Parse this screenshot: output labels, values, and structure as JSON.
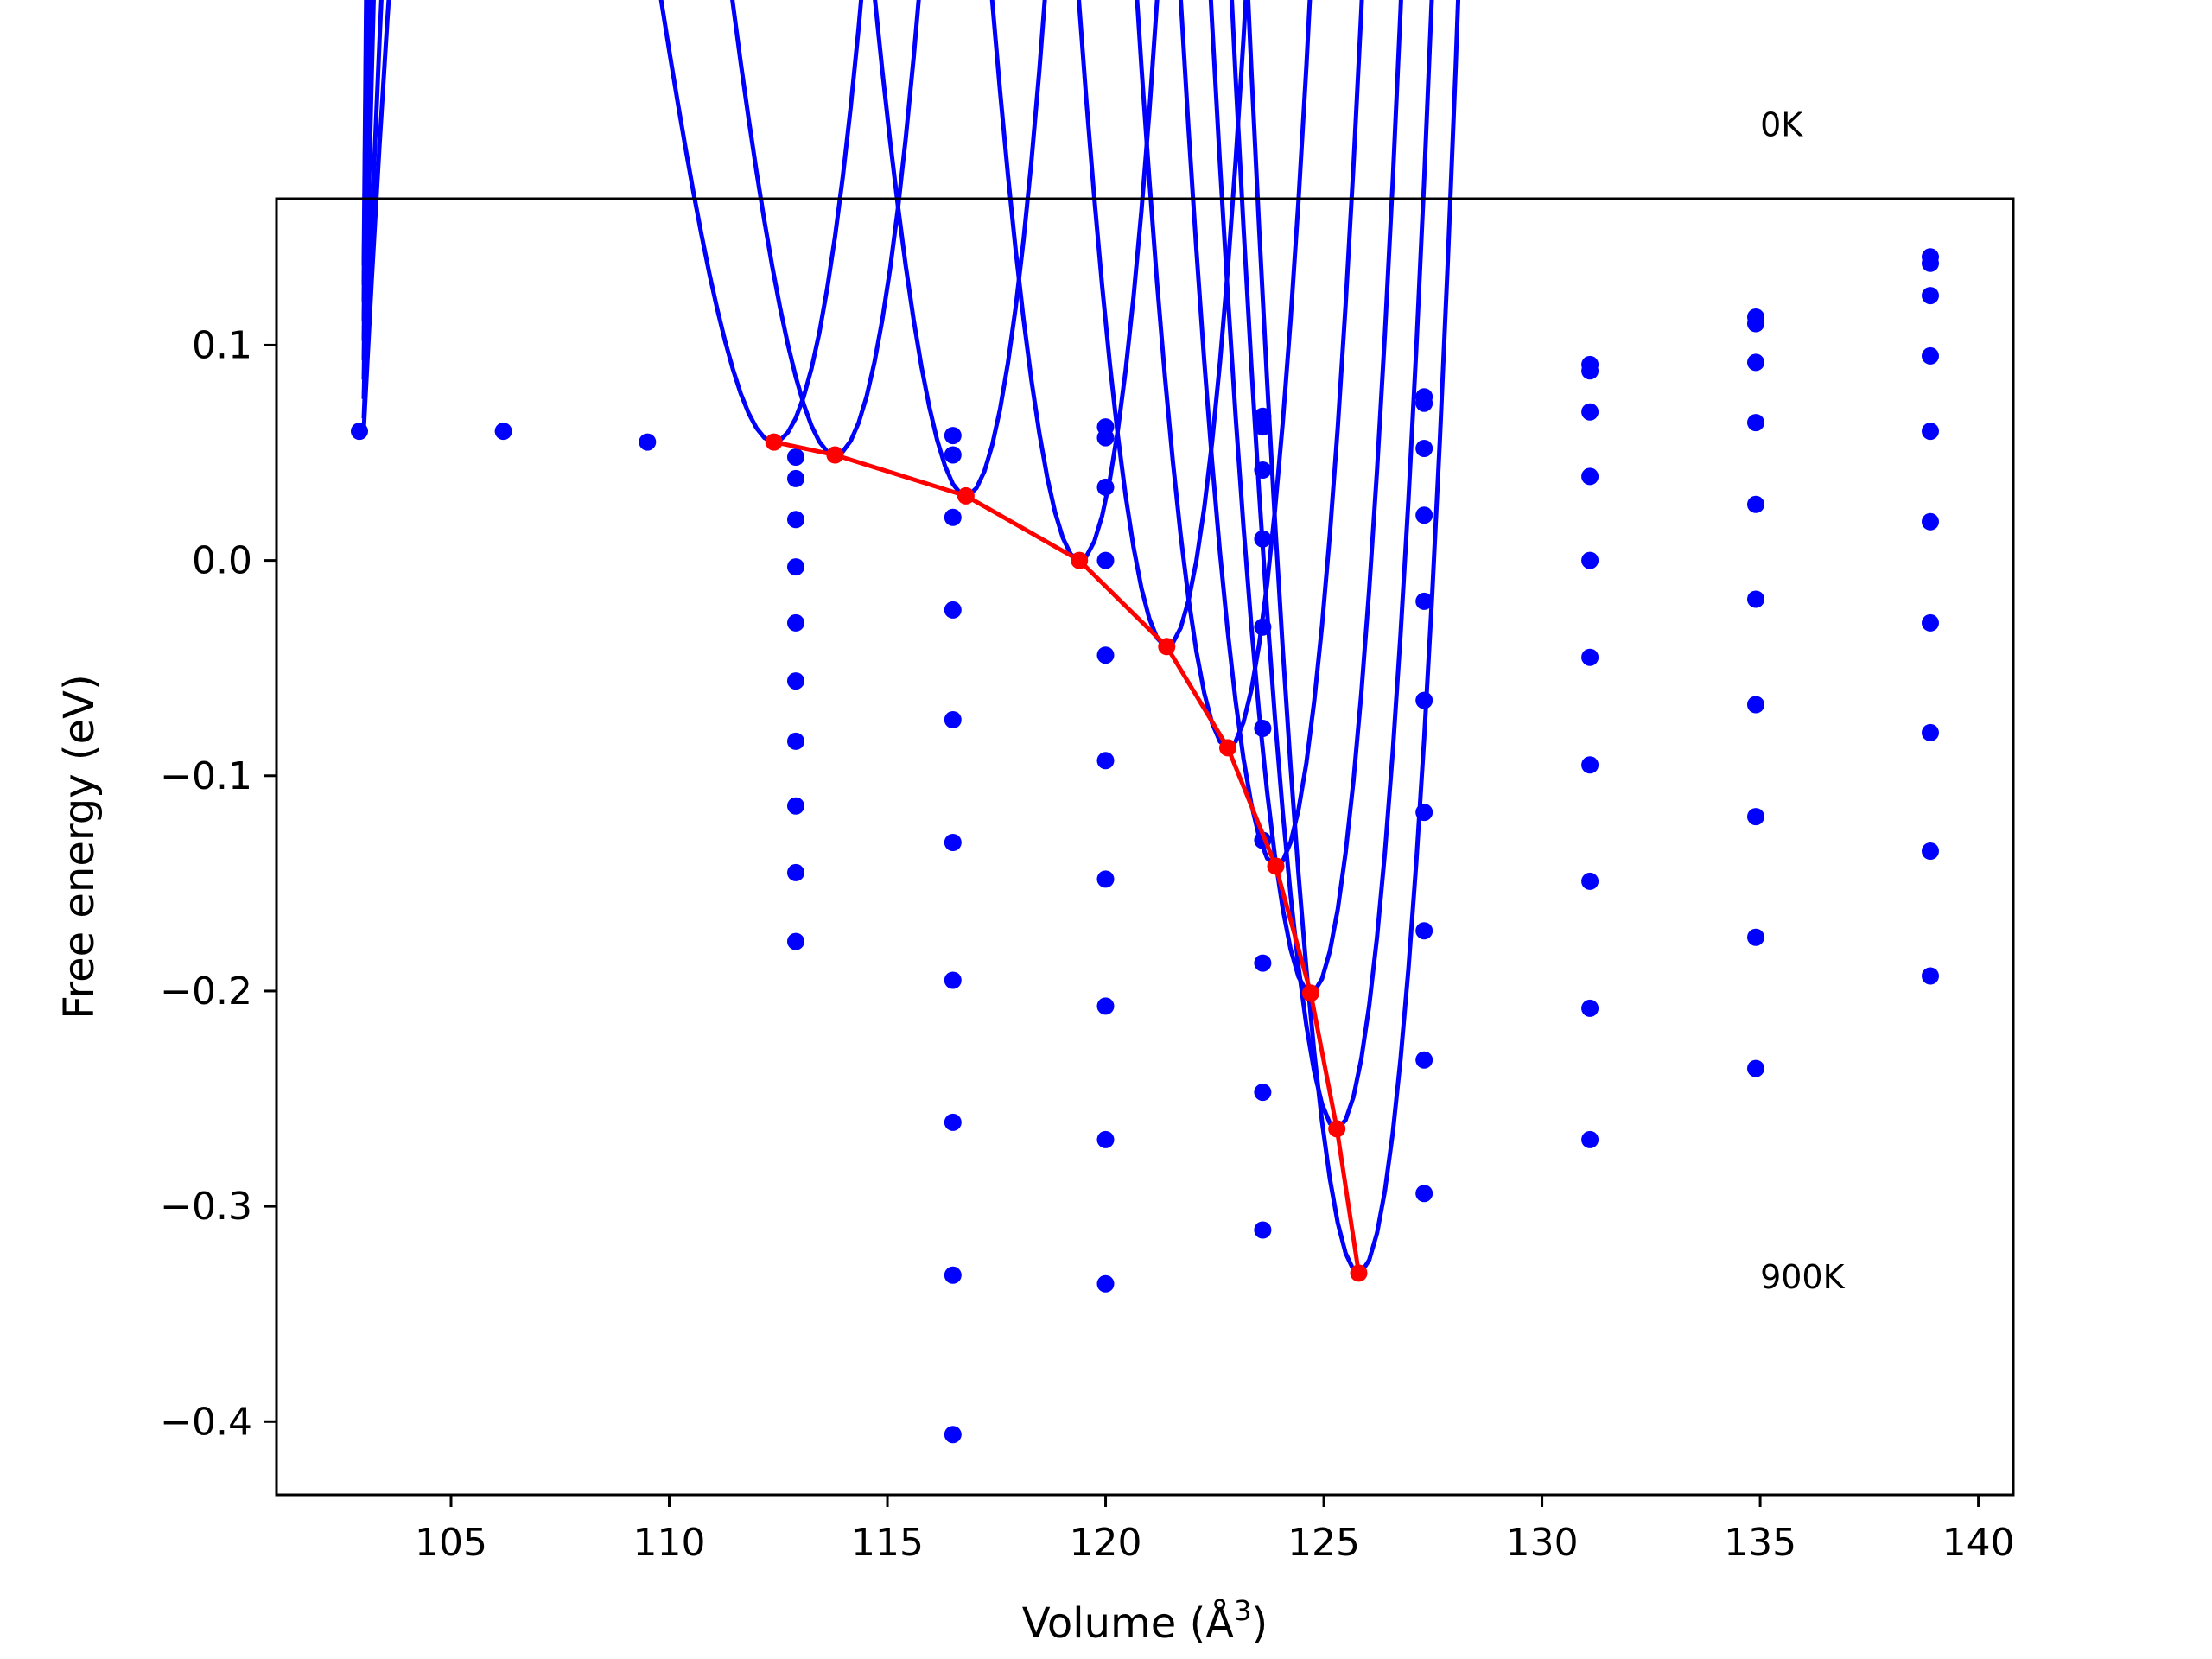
{
  "chart_data": {
    "type": "scatter",
    "title": "",
    "xlabel": "Volume (Å",
    "xlabel_exponent": "3",
    "xlabel_close": ")",
    "ylabel": "Free energy (eV)",
    "xlim": [
      101,
      140.8
    ],
    "ylim": [
      -0.434,
      0.168
    ],
    "xticks": [
      105,
      110,
      115,
      120,
      125,
      130,
      135,
      140
    ],
    "xtick_labels": [
      "105",
      "110",
      "115",
      "120",
      "125",
      "130",
      "135",
      "140"
    ],
    "yticks": [
      0.1,
      0.0,
      -0.1,
      -0.2,
      -0.3,
      -0.4
    ],
    "ytick_labels": [
      "0.1",
      "0.0",
      "−0.1",
      "−0.2",
      "−0.3",
      "−0.4"
    ],
    "grid": false,
    "annotations": [
      {
        "text": "0K",
        "x": 135,
        "y": 0.197
      },
      {
        "text": "900K",
        "x": 135,
        "y": -0.338
      }
    ],
    "colors": {
      "fits": "#0000ff",
      "points": "#0000ff",
      "minima": "#ff0000"
    },
    "fit_domain": [
      103,
      139
    ],
    "fit_curves": [
      {
        "vmin": 112.4,
        "fmin": 0.055,
        "fleft": 0.061
      },
      {
        "vmin": 113.8,
        "fmin": 0.049,
        "fleft": 0.066
      },
      {
        "vmin": 116.8,
        "fmin": 0.03,
        "fleft": 0.075
      },
      {
        "vmin": 119.4,
        "fmin": 0.0,
        "fleft": 0.084
      },
      {
        "vmin": 121.4,
        "fmin": -0.04,
        "fleft": 0.093
      },
      {
        "vmin": 122.8,
        "fmin": -0.087,
        "fleft": 0.102
      },
      {
        "vmin": 123.9,
        "fmin": -0.142,
        "fleft": 0.111
      },
      {
        "vmin": 124.7,
        "fmin": -0.201,
        "fleft": 0.12
      },
      {
        "vmin": 125.3,
        "fmin": -0.264,
        "fleft": 0.128
      },
      {
        "vmin": 125.8,
        "fmin": -0.331,
        "fleft": 0.137
      }
    ],
    "scatter_points": [
      [
        102.9,
        0.06
      ],
      [
        106.2,
        0.06
      ],
      [
        109.5,
        0.055
      ],
      [
        112.9,
        0.048
      ],
      [
        112.9,
        0.038
      ],
      [
        112.9,
        0.019
      ],
      [
        112.9,
        -0.003
      ],
      [
        112.9,
        -0.029
      ],
      [
        112.9,
        -0.056
      ],
      [
        112.9,
        -0.084
      ],
      [
        112.9,
        -0.114
      ],
      [
        112.9,
        -0.145
      ],
      [
        112.9,
        -0.177
      ],
      [
        116.5,
        0.058
      ],
      [
        116.5,
        0.049
      ],
      [
        116.5,
        0.02
      ],
      [
        116.5,
        -0.023
      ],
      [
        116.5,
        -0.074
      ],
      [
        116.5,
        -0.131
      ],
      [
        116.5,
        -0.195
      ],
      [
        116.5,
        -0.261
      ],
      [
        116.5,
        -0.332
      ],
      [
        116.5,
        -0.406
      ],
      [
        120.0,
        0.062
      ],
      [
        120.0,
        0.057
      ],
      [
        120.0,
        0.034
      ],
      [
        120.0,
        0.0
      ],
      [
        120.0,
        -0.044
      ],
      [
        120.0,
        -0.093
      ],
      [
        120.0,
        -0.148
      ],
      [
        120.0,
        -0.207
      ],
      [
        120.0,
        -0.269
      ],
      [
        120.0,
        -0.336
      ],
      [
        123.6,
        0.067
      ],
      [
        123.6,
        0.062
      ],
      [
        123.6,
        0.042
      ],
      [
        123.6,
        0.01
      ],
      [
        123.6,
        -0.031
      ],
      [
        123.6,
        -0.078
      ],
      [
        123.6,
        -0.13
      ],
      [
        123.6,
        -0.187
      ],
      [
        123.6,
        -0.247
      ],
      [
        123.6,
        -0.311
      ],
      [
        127.3,
        0.076
      ],
      [
        127.3,
        0.073
      ],
      [
        127.3,
        0.052
      ],
      [
        127.3,
        0.021
      ],
      [
        127.3,
        -0.019
      ],
      [
        127.3,
        -0.065
      ],
      [
        127.3,
        -0.117
      ],
      [
        127.3,
        -0.172
      ],
      [
        127.3,
        -0.232
      ],
      [
        127.3,
        -0.294
      ],
      [
        131.1,
        0.091
      ],
      [
        131.1,
        0.088
      ],
      [
        131.1,
        0.069
      ],
      [
        131.1,
        0.039
      ],
      [
        131.1,
        0.0
      ],
      [
        131.1,
        -0.045
      ],
      [
        131.1,
        -0.095
      ],
      [
        131.1,
        -0.149
      ],
      [
        131.1,
        -0.208
      ],
      [
        131.1,
        -0.269
      ],
      [
        134.9,
        0.113
      ],
      [
        134.9,
        0.11
      ],
      [
        134.9,
        0.092
      ],
      [
        134.9,
        0.064
      ],
      [
        134.9,
        0.026
      ],
      [
        134.9,
        -0.018
      ],
      [
        134.9,
        -0.067
      ],
      [
        134.9,
        -0.119
      ],
      [
        134.9,
        -0.175
      ],
      [
        134.9,
        -0.236
      ],
      [
        138.9,
        0.141
      ],
      [
        138.9,
        0.138
      ],
      [
        138.9,
        0.123
      ],
      [
        138.9,
        0.095
      ],
      [
        138.9,
        0.06
      ],
      [
        138.9,
        0.018
      ],
      [
        138.9,
        -0.029
      ],
      [
        138.9,
        -0.08
      ],
      [
        138.9,
        -0.135
      ],
      [
        138.9,
        -0.193
      ]
    ],
    "minima_line": {
      "x": [
        112.4,
        113.8,
        116.8,
        119.4,
        121.4,
        122.8,
        123.9,
        124.7,
        125.3,
        125.8
      ],
      "y": [
        0.055,
        0.049,
        0.03,
        0.0,
        -0.04,
        -0.087,
        -0.142,
        -0.201,
        -0.264,
        -0.331
      ]
    }
  }
}
